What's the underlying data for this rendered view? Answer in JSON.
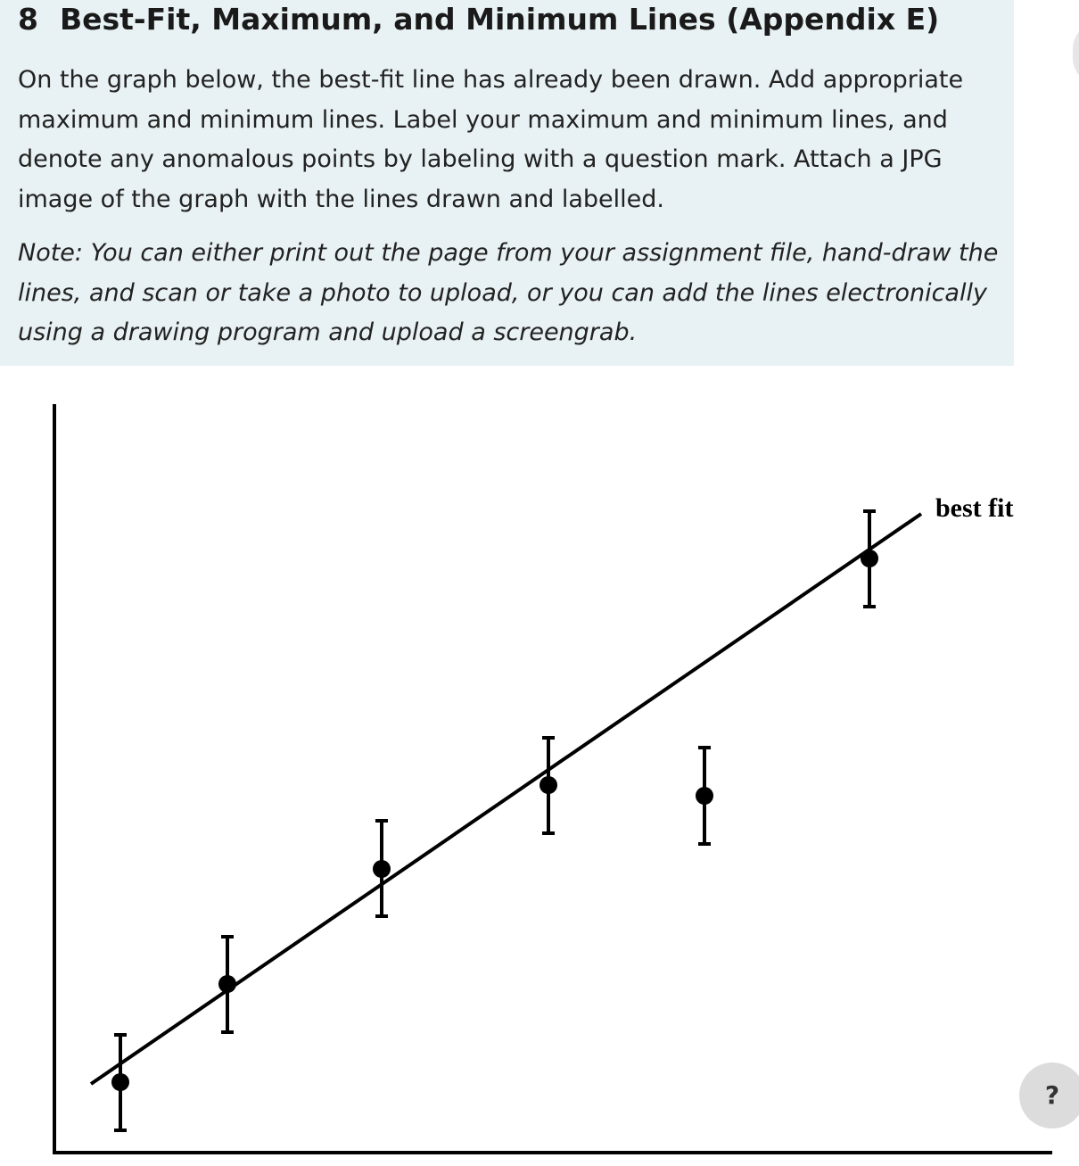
{
  "question": {
    "number": "8",
    "title": "Best-Fit, Maximum, and Minimum Lines (Appendix E)",
    "instructions": "On the graph below, the best-fit line has already been drawn. Add appropriate maximum and minimum lines. Label your maximum and minimum lines, and denote any anomalous points by labeling with a question mark.  Attach a JPG image of the graph with the lines drawn and labelled.",
    "note": "Note: You can either print out the page from your assignment file, hand-draw the lines, and scan or take a photo to upload, or you can add the lines electronically using a drawing program and upload a screengrab."
  },
  "graph": {
    "line_label": "best fit"
  },
  "help_button": "?"
}
